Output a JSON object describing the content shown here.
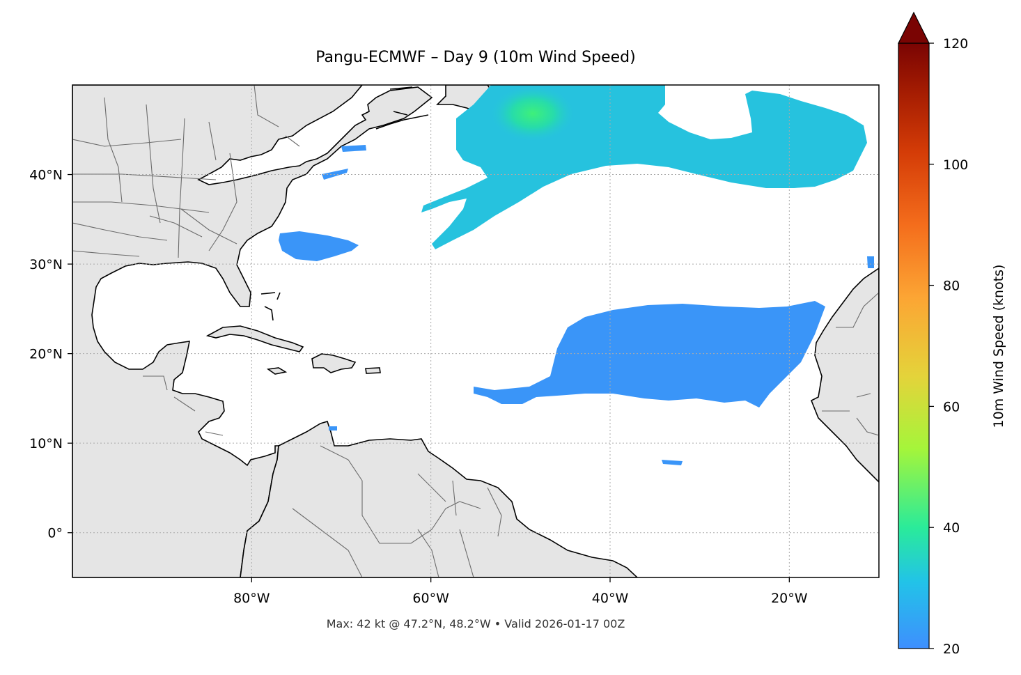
{
  "title": "Pangu-ECMWF – Day 9 (10m Wind Speed)",
  "footer": "Max: 42 kt @ 47.2°N, 48.2°W • Valid 2026-01-17 00Z",
  "map": {
    "lon_range": [
      -100,
      -10
    ],
    "lat_range": [
      -5,
      50
    ],
    "lon_ticks": [
      {
        "value": -80,
        "label": "80°W"
      },
      {
        "value": -60,
        "label": "60°W"
      },
      {
        "value": -40,
        "label": "40°W"
      },
      {
        "value": -20,
        "label": "20°W"
      }
    ],
    "lat_ticks": [
      {
        "value": 40,
        "label": "40°N"
      },
      {
        "value": 30,
        "label": "30°N"
      },
      {
        "value": 20,
        "label": "20°N"
      },
      {
        "value": 10,
        "label": "10°N"
      },
      {
        "value": 0,
        "label": "0°"
      }
    ],
    "land_color": "#e5e5e5",
    "ocean_color": "#ffffff",
    "coast_color": "#000000",
    "border_color": "#6b6b6b",
    "gridlines": "dotted"
  },
  "colorbar": {
    "label": "10m Wind Speed (knots)",
    "min": 20,
    "max": 120,
    "extend": "max",
    "colormap": "turbo",
    "ticks": [
      {
        "value": 20,
        "label": "20"
      },
      {
        "value": 40,
        "label": "40"
      },
      {
        "value": 60,
        "label": "60"
      },
      {
        "value": 80,
        "label": "80"
      },
      {
        "value": 100,
        "label": "100"
      },
      {
        "value": 120,
        "label": "120"
      }
    ],
    "colors": [
      "#3e8ffe",
      "#22c3e8",
      "#2aeb9a",
      "#a5f53a",
      "#e4d33a",
      "#fca534",
      "#f46d1c",
      "#d43c07",
      "#a41c02",
      "#7a0403"
    ]
  }
}
